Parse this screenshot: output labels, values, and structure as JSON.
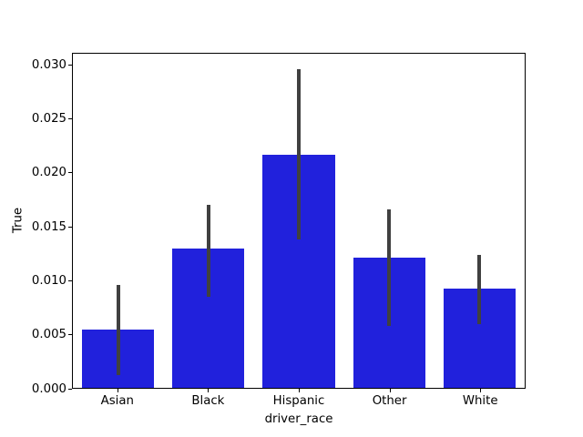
{
  "chart_data": {
    "type": "bar",
    "title": "",
    "xlabel": "driver_race",
    "ylabel": "True",
    "categories": [
      "Asian",
      "Black",
      "Hispanic",
      "Other",
      "White"
    ],
    "values": [
      0.0054,
      0.013,
      0.0217,
      0.0121,
      0.0092
    ],
    "error_low": [
      0.0012,
      0.0085,
      0.0138,
      0.0058,
      0.0059
    ],
    "error_high": [
      0.0096,
      0.017,
      0.0297,
      0.0166,
      0.0124
    ],
    "ylim": [
      0,
      0.0311
    ],
    "yticks": [
      0.0,
      0.005,
      0.01,
      0.015,
      0.02,
      0.025,
      0.03
    ],
    "ytick_labels": [
      "0.000",
      "0.005",
      "0.010",
      "0.015",
      "0.020",
      "0.025",
      "0.030"
    ],
    "bar_color": "#2121dc",
    "error_bar_color": "#404040",
    "grid": false,
    "legend": null,
    "bar_width_fraction": 0.8
  }
}
